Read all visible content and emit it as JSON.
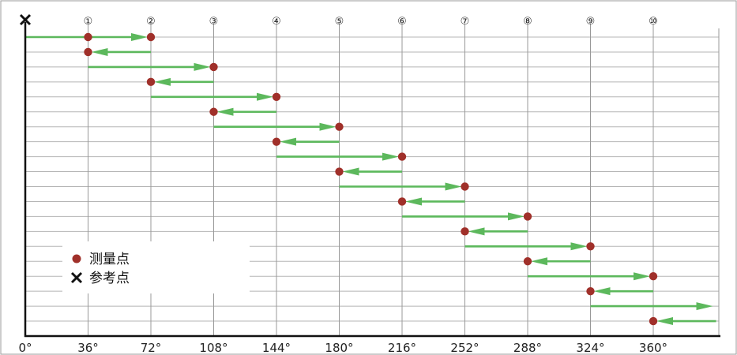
{
  "chart_data": {
    "type": "diagram",
    "x_unit": "°",
    "x_ticks": [
      0,
      36,
      72,
      108,
      144,
      180,
      216,
      252,
      288,
      324,
      360
    ],
    "x_tick_labels": [
      "0°",
      "36°",
      "72°",
      "108°",
      "144°",
      "180°",
      "216°",
      "252°",
      "288°",
      "324°",
      "360°"
    ],
    "position_labels": [
      "①",
      "②",
      "③",
      "④",
      "⑤",
      "⑥",
      "⑦",
      "⑧",
      "⑨",
      "⑩"
    ],
    "position_angles": [
      36,
      72,
      108,
      144,
      180,
      216,
      252,
      288,
      324,
      360
    ],
    "reference_point": {
      "x": 0
    },
    "arrows": [
      {
        "from": 0,
        "to": 72
      },
      {
        "from": 72,
        "to": 36
      },
      {
        "from": 36,
        "to": 108
      },
      {
        "from": 108,
        "to": 72
      },
      {
        "from": 72,
        "to": 144
      },
      {
        "from": 144,
        "to": 108
      },
      {
        "from": 108,
        "to": 180
      },
      {
        "from": 180,
        "to": 144
      },
      {
        "from": 144,
        "to": 216
      },
      {
        "from": 216,
        "to": 180
      },
      {
        "from": 180,
        "to": 252
      },
      {
        "from": 252,
        "to": 216
      },
      {
        "from": 216,
        "to": 288
      },
      {
        "from": 288,
        "to": 252
      },
      {
        "from": 252,
        "to": 324
      },
      {
        "from": 324,
        "to": 288
      },
      {
        "from": 288,
        "to": 360
      },
      {
        "from": 360,
        "to": 324
      },
      {
        "from": 324,
        "to": 396
      },
      {
        "from": 396,
        "to": 360
      }
    ],
    "measurement_points": [
      {
        "row": 0,
        "x": 36
      },
      {
        "row": 0,
        "x": 72
      },
      {
        "row": 1,
        "x": 36
      },
      {
        "row": 2,
        "x": 108
      },
      {
        "row": 3,
        "x": 72
      },
      {
        "row": 4,
        "x": 144
      },
      {
        "row": 5,
        "x": 108
      },
      {
        "row": 6,
        "x": 180
      },
      {
        "row": 7,
        "x": 144
      },
      {
        "row": 8,
        "x": 216
      },
      {
        "row": 9,
        "x": 180
      },
      {
        "row": 10,
        "x": 252
      },
      {
        "row": 11,
        "x": 216
      },
      {
        "row": 12,
        "x": 288
      },
      {
        "row": 13,
        "x": 252
      },
      {
        "row": 14,
        "x": 324
      },
      {
        "row": 15,
        "x": 288
      },
      {
        "row": 16,
        "x": 360
      },
      {
        "row": 17,
        "x": 324
      },
      {
        "row": 19,
        "x": 360
      }
    ],
    "legend": [
      {
        "symbol": "dot",
        "label": "测量点"
      },
      {
        "symbol": "cross",
        "label": "参考点"
      }
    ],
    "colors": {
      "arrow": "#5cb85c",
      "point": "#a0302a",
      "grid": "#999999",
      "hline": "#b5b5b5",
      "axis": "#111111"
    }
  }
}
